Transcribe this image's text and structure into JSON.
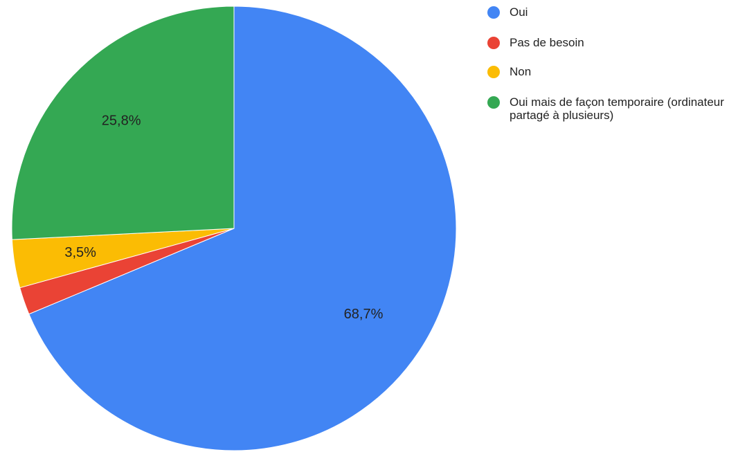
{
  "chart_data": {
    "type": "pie",
    "categories": [
      "Oui",
      "Pas de besoin",
      "Non",
      "Oui mais de façon temporaire (ordinateur partagé à plusieurs)"
    ],
    "values": [
      68.7,
      2.0,
      3.5,
      25.8
    ],
    "value_labels": [
      "68,7%",
      null,
      "3,5%",
      "25,8%"
    ],
    "colors": [
      "#4285f4",
      "#ea4335",
      "#fbbc04",
      "#34a853"
    ],
    "legend": "right"
  }
}
